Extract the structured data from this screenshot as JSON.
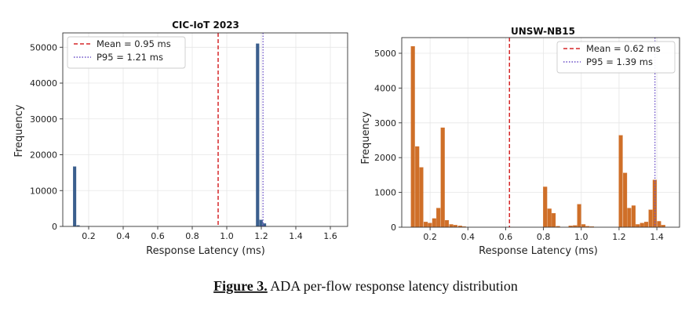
{
  "figure": {
    "caption_label": "Figure 3.",
    "caption_text": " ADA per-flow response latency distribution"
  },
  "chart_data": [
    {
      "type": "bar",
      "title": "CIC-IoT 2023",
      "xlabel": "Response Latency (ms)",
      "ylabel": "Frequency",
      "xlim": [
        0.05,
        1.7
      ],
      "ylim": [
        0,
        54000
      ],
      "xticks": [
        0.2,
        0.4,
        0.6,
        0.8,
        1.0,
        1.2,
        1.4,
        1.6
      ],
      "xtick_labels": [
        "0.2",
        "0.4",
        "0.6",
        "0.8",
        "1.0",
        "1.2",
        "1.4",
        "1.6"
      ],
      "yticks": [
        0,
        10000,
        20000,
        30000,
        40000,
        50000
      ],
      "ytick_labels": [
        "0",
        "10000",
        "20000",
        "30000",
        "40000",
        "50000"
      ],
      "grid": true,
      "bar_color": "#3b5f8e",
      "bin_width": 0.02,
      "bins": [
        {
          "x": 0.12,
          "value": 16700
        },
        {
          "x": 0.14,
          "value": 300
        },
        {
          "x": 1.18,
          "value": 51000
        },
        {
          "x": 1.2,
          "value": 1800
        },
        {
          "x": 1.22,
          "value": 800
        }
      ],
      "reference_lines": [
        {
          "label": "Mean = 0.95 ms",
          "x": 0.95,
          "color": "#d62728",
          "style": "dashed"
        },
        {
          "label": "P95  = 1.21 ms",
          "x": 1.21,
          "color": "#6a4fc7",
          "style": "dotted"
        }
      ],
      "legend_position": "upper-left"
    },
    {
      "type": "bar",
      "title": "UNSW-NB15",
      "xlabel": "Response Latency (ms)",
      "ylabel": "Frequency",
      "xlim": [
        0.05,
        1.52
      ],
      "ylim": [
        0,
        5450
      ],
      "xticks": [
        0.2,
        0.4,
        0.6,
        0.8,
        1.0,
        1.2,
        1.4
      ],
      "xtick_labels": [
        "0.2",
        "0.4",
        "0.6",
        "0.8",
        "1.0",
        "1.2",
        "1.4"
      ],
      "yticks": [
        0,
        1000,
        2000,
        3000,
        4000,
        5000
      ],
      "ytick_labels": [
        "0",
        "1000",
        "2000",
        "3000",
        "4000",
        "5000"
      ],
      "grid": true,
      "bar_color": "#cf6f28",
      "bin_width": 0.0225,
      "bins": [
        {
          "x": 0.11,
          "value": 5200
        },
        {
          "x": 0.133,
          "value": 2320
        },
        {
          "x": 0.155,
          "value": 1720
        },
        {
          "x": 0.178,
          "value": 150
        },
        {
          "x": 0.2,
          "value": 120
        },
        {
          "x": 0.223,
          "value": 250
        },
        {
          "x": 0.245,
          "value": 550
        },
        {
          "x": 0.268,
          "value": 2860
        },
        {
          "x": 0.29,
          "value": 200
        },
        {
          "x": 0.313,
          "value": 80
        },
        {
          "x": 0.335,
          "value": 60
        },
        {
          "x": 0.36,
          "value": 40
        },
        {
          "x": 0.38,
          "value": 20
        },
        {
          "x": 0.81,
          "value": 1160
        },
        {
          "x": 0.833,
          "value": 530
        },
        {
          "x": 0.855,
          "value": 400
        },
        {
          "x": 0.878,
          "value": 30
        },
        {
          "x": 0.945,
          "value": 40
        },
        {
          "x": 0.968,
          "value": 50
        },
        {
          "x": 0.99,
          "value": 660
        },
        {
          "x": 1.013,
          "value": 80
        },
        {
          "x": 1.035,
          "value": 30
        },
        {
          "x": 1.058,
          "value": 20
        },
        {
          "x": 1.21,
          "value": 2640
        },
        {
          "x": 1.233,
          "value": 1560
        },
        {
          "x": 1.255,
          "value": 550
        },
        {
          "x": 1.278,
          "value": 620
        },
        {
          "x": 1.3,
          "value": 80
        },
        {
          "x": 1.323,
          "value": 120
        },
        {
          "x": 1.345,
          "value": 150
        },
        {
          "x": 1.368,
          "value": 500
        },
        {
          "x": 1.39,
          "value": 1360
        },
        {
          "x": 1.413,
          "value": 170
        },
        {
          "x": 1.435,
          "value": 60
        }
      ],
      "reference_lines": [
        {
          "label": "Mean = 0.62 ms",
          "x": 0.62,
          "color": "#d62728",
          "style": "dashed"
        },
        {
          "label": "P95  = 1.39 ms",
          "x": 1.39,
          "color": "#6a4fc7",
          "style": "dotted"
        }
      ],
      "legend_position": "upper-right"
    }
  ]
}
